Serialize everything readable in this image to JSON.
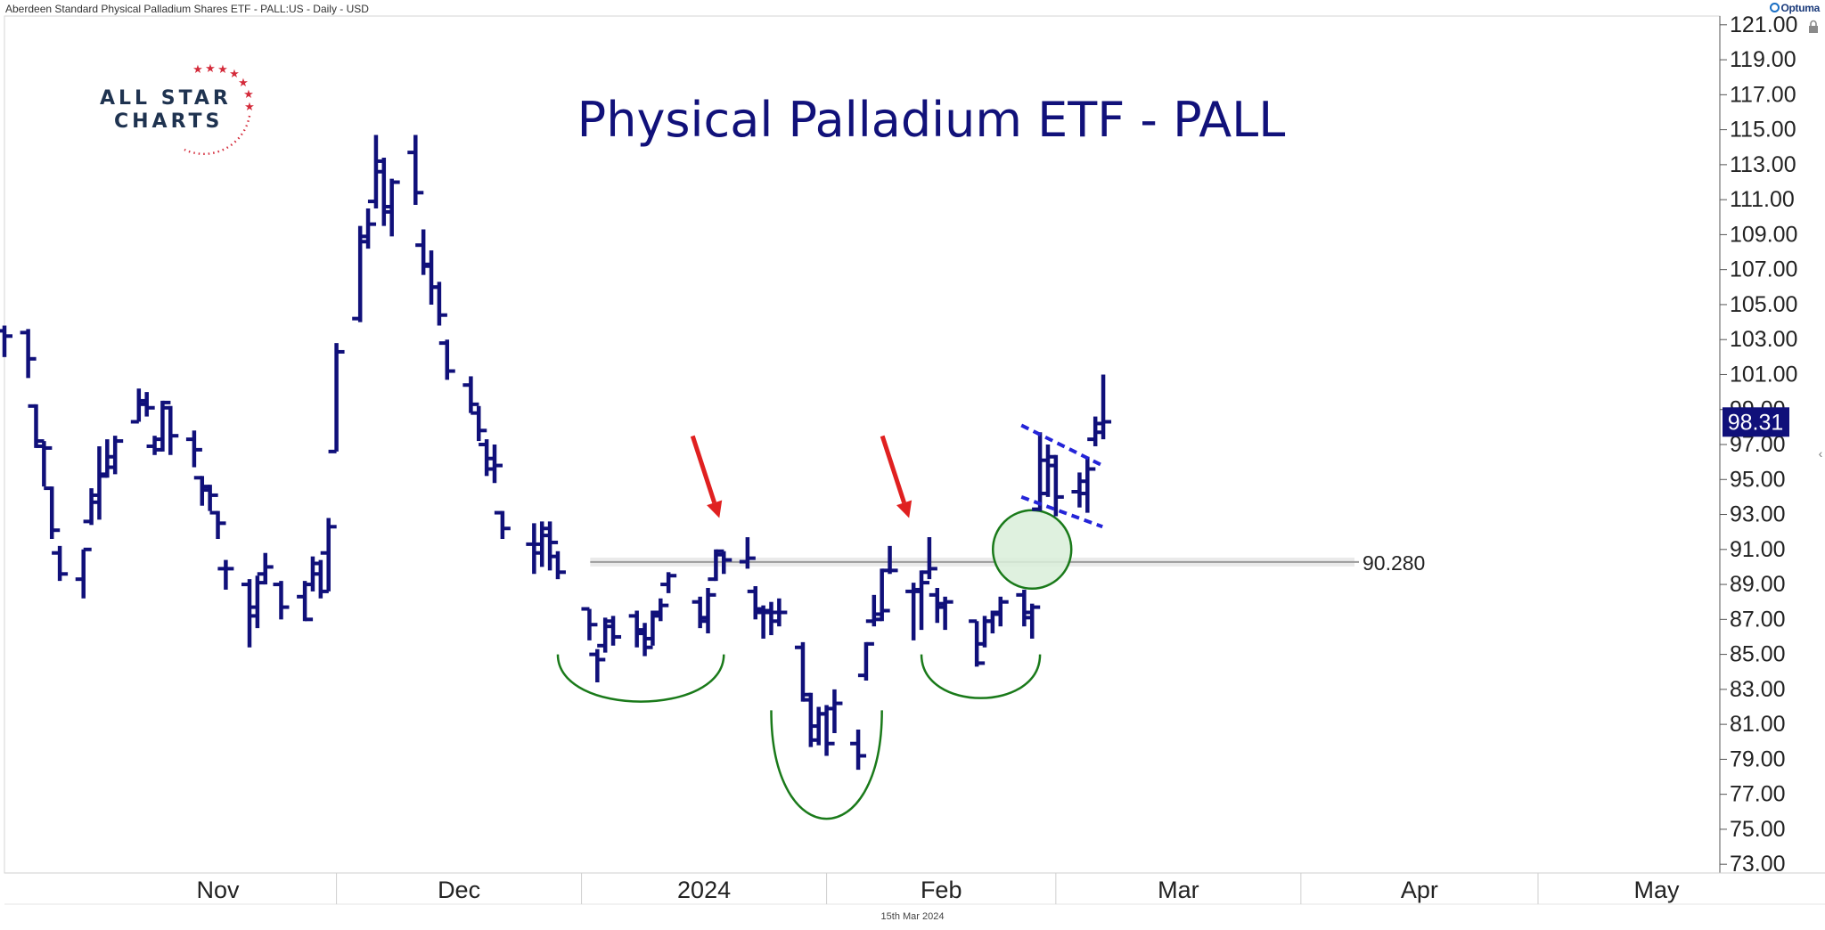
{
  "header": {
    "instrument": "Aberdeen Standard Physical Palladium Shares ETF - PALL:US - Daily - USD",
    "brand": "Optuma"
  },
  "footer": {
    "date": "15th Mar 2024"
  },
  "logo": {
    "line1": "ALL STAR",
    "line2": "CHARTS"
  },
  "colors": {
    "bars": "#10107a",
    "title": "#11117a",
    "arrows": "#e02020",
    "arcs": "#1a7a1a",
    "flag": "#2424d8",
    "price_tag": "#10107a",
    "circle_fill": "#d9efd9"
  },
  "chart_data": {
    "type": "ohlc",
    "title": "Physical Palladium ETF - PALL",
    "y_ticks": [
      73,
      75,
      77,
      79,
      81,
      83,
      85,
      87,
      89,
      91,
      93,
      95,
      97,
      99,
      101,
      103,
      105,
      107,
      109,
      111,
      113,
      115,
      117,
      119,
      121
    ],
    "y_tick_labels": [
      "73.00",
      "75.00",
      "77.00",
      "79.00",
      "81.00",
      "83.00",
      "85.00",
      "87.00",
      "89.00",
      "91.00",
      "93.00",
      "95.00",
      "97.00",
      "99.00",
      "101.00",
      "103.00",
      "105.00",
      "107.00",
      "109.00",
      "111.00",
      "113.00",
      "115.00",
      "117.00",
      "119.00",
      "121.00"
    ],
    "ylim": [
      72.5,
      121.5
    ],
    "x_labels": [
      {
        "label": "Nov",
        "date": "2023-11-01"
      },
      {
        "label": "Dec",
        "date": "2023-12-01"
      },
      {
        "label": "2024",
        "date": "2024-01-01"
      },
      {
        "label": "Feb",
        "date": "2024-02-01"
      },
      {
        "label": "Mar",
        "date": "2024-03-01"
      },
      {
        "label": "Apr",
        "date": "2024-04-01"
      },
      {
        "label": "May",
        "date": "2024-05-01"
      }
    ],
    "x_start": "2023-10-20",
    "x_end": "2024-05-24",
    "last_price": "98.31",
    "support_level": 90.28,
    "support_label": "90.280",
    "support_start": "2024-01-03",
    "bars": [
      {
        "d": "2023-10-20",
        "o": 103.5,
        "h": 103.8,
        "l": 102.0,
        "c": 103.2
      },
      {
        "d": "2023-10-23",
        "o": 103.4,
        "h": 103.6,
        "l": 100.8,
        "c": 101.9
      },
      {
        "d": "2023-10-24",
        "o": 99.2,
        "h": 99.3,
        "l": 96.8,
        "c": 97.2
      },
      {
        "d": "2023-10-25",
        "o": 96.9,
        "h": 97.2,
        "l": 94.6,
        "c": 96.8
      },
      {
        "d": "2023-10-26",
        "o": 94.5,
        "h": 94.6,
        "l": 91.6,
        "c": 92.1
      },
      {
        "d": "2023-10-27",
        "o": 90.8,
        "h": 91.2,
        "l": 89.2,
        "c": 89.6
      },
      {
        "d": "2023-10-30",
        "o": 89.3,
        "h": 91.0,
        "l": 88.2,
        "c": 91.0
      },
      {
        "d": "2023-10-31",
        "o": 92.6,
        "h": 94.5,
        "l": 92.4,
        "c": 94.1
      },
      {
        "d": "2023-11-01",
        "o": 93.7,
        "h": 96.9,
        "l": 92.7,
        "c": 95.2
      },
      {
        "d": "2023-11-02",
        "o": 95.3,
        "h": 97.3,
        "l": 95.1,
        "c": 96.3
      },
      {
        "d": "2023-11-03",
        "o": 95.7,
        "h": 97.5,
        "l": 95.3,
        "c": 97.2
      },
      {
        "d": "2023-11-06",
        "o": 98.3,
        "h": 100.2,
        "l": 98.3,
        "c": 99.5
      },
      {
        "d": "2023-11-07",
        "o": 99.3,
        "h": 100.0,
        "l": 98.6,
        "c": 99.1
      },
      {
        "d": "2023-11-08",
        "o": 96.9,
        "h": 97.5,
        "l": 96.4,
        "c": 97.3
      },
      {
        "d": "2023-11-09",
        "o": 96.7,
        "h": 99.5,
        "l": 96.6,
        "c": 99.4
      },
      {
        "d": "2023-11-10",
        "o": 99.1,
        "h": 99.2,
        "l": 96.4,
        "c": 97.5
      },
      {
        "d": "2023-11-13",
        "o": 97.3,
        "h": 97.8,
        "l": 95.7,
        "c": 96.7
      },
      {
        "d": "2023-11-14",
        "o": 95.1,
        "h": 95.2,
        "l": 93.5,
        "c": 94.6
      },
      {
        "d": "2023-11-15",
        "o": 94.4,
        "h": 94.7,
        "l": 93.2,
        "c": 94.1
      },
      {
        "d": "2023-11-16",
        "o": 93.1,
        "h": 93.2,
        "l": 91.6,
        "c": 92.5
      },
      {
        "d": "2023-11-17",
        "o": 89.9,
        "h": 90.4,
        "l": 88.7,
        "c": 89.9
      },
      {
        "d": "2023-11-20",
        "o": 89.0,
        "h": 89.3,
        "l": 85.4,
        "c": 87.7
      },
      {
        "d": "2023-11-21",
        "o": 87.2,
        "h": 89.5,
        "l": 86.5,
        "c": 89.1
      },
      {
        "d": "2023-11-22",
        "o": 89.6,
        "h": 90.8,
        "l": 89.0,
        "c": 90.0
      },
      {
        "d": "2023-11-24",
        "o": 89.0,
        "h": 89.2,
        "l": 87.0,
        "c": 87.7
      },
      {
        "d": "2023-11-27",
        "o": 88.3,
        "h": 89.2,
        "l": 86.9,
        "c": 87.0
      },
      {
        "d": "2023-11-28",
        "o": 89.0,
        "h": 90.6,
        "l": 88.6,
        "c": 89.6
      },
      {
        "d": "2023-11-29",
        "o": 90.2,
        "h": 90.4,
        "l": 88.2,
        "c": 88.6
      },
      {
        "d": "2023-11-30",
        "o": 90.8,
        "h": 92.8,
        "l": 88.6,
        "c": 92.3
      },
      {
        "d": "2023-12-01",
        "o": 96.6,
        "h": 102.8,
        "l": 96.6,
        "c": 102.3
      },
      {
        "d": "2023-12-04",
        "o": 104.2,
        "h": 109.5,
        "l": 104.0,
        "c": 108.6
      },
      {
        "d": "2023-12-05",
        "o": 108.9,
        "h": 110.5,
        "l": 108.2,
        "c": 109.6
      },
      {
        "d": "2023-12-06",
        "o": 110.9,
        "h": 114.7,
        "l": 110.5,
        "c": 113.2
      },
      {
        "d": "2023-12-07",
        "o": 112.6,
        "h": 113.4,
        "l": 109.5,
        "c": 110.3
      },
      {
        "d": "2023-12-08",
        "o": 110.6,
        "h": 112.2,
        "l": 108.9,
        "c": 112.0
      },
      {
        "d": "2023-12-11",
        "o": 113.7,
        "h": 114.7,
        "l": 110.7,
        "c": 111.4
      },
      {
        "d": "2023-12-12",
        "o": 108.4,
        "h": 109.3,
        "l": 106.7,
        "c": 107.2
      },
      {
        "d": "2023-12-13",
        "o": 107.3,
        "h": 108.1,
        "l": 105.0,
        "c": 106.0
      },
      {
        "d": "2023-12-14",
        "o": 106.0,
        "h": 106.3,
        "l": 103.8,
        "c": 104.4
      },
      {
        "d": "2023-12-15",
        "o": 102.8,
        "h": 103.0,
        "l": 100.7,
        "c": 101.2
      },
      {
        "d": "2023-12-18",
        "o": 100.4,
        "h": 100.9,
        "l": 98.8,
        "c": 99.3
      },
      {
        "d": "2023-12-19",
        "o": 98.8,
        "h": 99.2,
        "l": 97.2,
        "c": 97.8
      },
      {
        "d": "2023-12-20",
        "o": 97.0,
        "h": 97.3,
        "l": 95.2,
        "c": 95.6
      },
      {
        "d": "2023-12-21",
        "o": 96.2,
        "h": 97.0,
        "l": 94.8,
        "c": 95.8
      },
      {
        "d": "2023-12-22",
        "o": 93.1,
        "h": 93.2,
        "l": 91.6,
        "c": 92.2
      },
      {
        "d": "2023-12-26",
        "o": 91.3,
        "h": 92.5,
        "l": 89.6,
        "c": 90.8
      },
      {
        "d": "2023-12-27",
        "o": 91.3,
        "h": 92.6,
        "l": 90.0,
        "c": 92.2
      },
      {
        "d": "2023-12-28",
        "o": 91.8,
        "h": 92.6,
        "l": 89.8,
        "c": 91.4
      },
      {
        "d": "2023-12-29",
        "o": 90.6,
        "h": 90.9,
        "l": 89.3,
        "c": 89.7
      },
      {
        "d": "2024-01-02",
        "o": 87.6,
        "h": 87.6,
        "l": 85.8,
        "c": 86.7
      },
      {
        "d": "2024-01-03",
        "o": 85.0,
        "h": 85.3,
        "l": 83.4,
        "c": 84.7
      },
      {
        "d": "2024-01-04",
        "o": 85.5,
        "h": 87.1,
        "l": 85.1,
        "c": 86.9
      },
      {
        "d": "2024-01-05",
        "o": 86.6,
        "h": 87.2,
        "l": 85.5,
        "c": 86.0
      },
      {
        "d": "2024-01-08",
        "o": 87.2,
        "h": 87.5,
        "l": 85.4,
        "c": 86.2
      },
      {
        "d": "2024-01-09",
        "o": 86.4,
        "h": 86.8,
        "l": 84.9,
        "c": 85.4
      },
      {
        "d": "2024-01-10",
        "o": 85.9,
        "h": 87.5,
        "l": 85.5,
        "c": 87.4
      },
      {
        "d": "2024-01-11",
        "o": 87.2,
        "h": 88.2,
        "l": 86.9,
        "c": 87.8
      },
      {
        "d": "2024-01-12",
        "o": 89.0,
        "h": 89.7,
        "l": 88.5,
        "c": 89.5
      },
      {
        "d": "2024-01-16",
        "o": 88.0,
        "h": 88.3,
        "l": 86.5,
        "c": 86.9
      },
      {
        "d": "2024-01-17",
        "o": 87.1,
        "h": 88.8,
        "l": 86.2,
        "c": 88.4
      },
      {
        "d": "2024-01-18",
        "o": 89.3,
        "h": 91.0,
        "l": 89.2,
        "c": 90.9
      },
      {
        "d": "2024-01-19",
        "o": 90.7,
        "h": 90.9,
        "l": 89.6,
        "c": 90.4
      },
      {
        "d": "2024-01-22",
        "o": 90.3,
        "h": 91.7,
        "l": 89.9,
        "c": 90.5
      },
      {
        "d": "2024-01-23",
        "o": 88.6,
        "h": 88.9,
        "l": 87.0,
        "c": 87.6
      },
      {
        "d": "2024-01-24",
        "o": 87.4,
        "h": 87.8,
        "l": 85.9,
        "c": 87.5
      },
      {
        "d": "2024-01-25",
        "o": 87.4,
        "h": 88.0,
        "l": 86.1,
        "c": 86.9
      },
      {
        "d": "2024-01-26",
        "o": 87.4,
        "h": 88.2,
        "l": 86.6,
        "c": 87.4
      },
      {
        "d": "2024-01-29",
        "o": 85.4,
        "h": 85.7,
        "l": 82.3,
        "c": 82.7
      },
      {
        "d": "2024-01-30",
        "o": 82.4,
        "h": 82.8,
        "l": 79.7,
        "c": 80.1
      },
      {
        "d": "2024-01-31",
        "o": 80.9,
        "h": 82.0,
        "l": 79.8,
        "c": 81.6
      },
      {
        "d": "2024-02-01",
        "o": 81.6,
        "h": 82.1,
        "l": 79.2,
        "c": 79.9
      },
      {
        "d": "2024-02-02",
        "o": 81.9,
        "h": 83.0,
        "l": 80.5,
        "c": 82.2
      },
      {
        "d": "2024-02-05",
        "o": 79.9,
        "h": 80.7,
        "l": 78.4,
        "c": 79.2
      },
      {
        "d": "2024-02-06",
        "o": 83.8,
        "h": 85.7,
        "l": 83.5,
        "c": 85.6
      },
      {
        "d": "2024-02-07",
        "o": 86.9,
        "h": 88.4,
        "l": 86.6,
        "c": 87.3
      },
      {
        "d": "2024-02-08",
        "o": 87.0,
        "h": 89.9,
        "l": 86.9,
        "c": 87.5
      },
      {
        "d": "2024-02-09",
        "o": 89.8,
        "h": 91.2,
        "l": 89.6,
        "c": 89.8
      },
      {
        "d": "2024-02-12",
        "o": 88.6,
        "h": 89.1,
        "l": 85.8,
        "c": 88.7
      },
      {
        "d": "2024-02-13",
        "o": 88.6,
        "h": 89.8,
        "l": 86.4,
        "c": 89.1
      },
      {
        "d": "2024-02-14",
        "o": 89.7,
        "h": 91.7,
        "l": 89.3,
        "c": 89.9
      },
      {
        "d": "2024-02-15",
        "o": 88.4,
        "h": 88.8,
        "l": 86.8,
        "c": 87.9
      },
      {
        "d": "2024-02-16",
        "o": 87.7,
        "h": 88.3,
        "l": 86.4,
        "c": 88.0
      },
      {
        "d": "2024-02-20",
        "o": 86.9,
        "h": 86.9,
        "l": 84.3,
        "c": 84.5
      },
      {
        "d": "2024-02-21",
        "o": 85.6,
        "h": 87.2,
        "l": 85.4,
        "c": 86.9
      },
      {
        "d": "2024-02-22",
        "o": 86.9,
        "h": 87.5,
        "l": 86.2,
        "c": 87.3
      },
      {
        "d": "2024-02-23",
        "o": 87.4,
        "h": 88.3,
        "l": 86.6,
        "c": 88.0
      },
      {
        "d": "2024-02-26",
        "o": 88.4,
        "h": 88.7,
        "l": 86.6,
        "c": 87.1
      },
      {
        "d": "2024-02-27",
        "o": 87.4,
        "h": 87.9,
        "l": 85.9,
        "c": 87.7
      },
      {
        "d": "2024-02-28",
        "o": 93.3,
        "h": 97.7,
        "l": 93.2,
        "c": 96.1
      },
      {
        "d": "2024-02-29",
        "o": 94.2,
        "h": 97.0,
        "l": 94.0,
        "c": 96.3
      },
      {
        "d": "2024-03-01",
        "o": 95.8,
        "h": 96.4,
        "l": 92.9,
        "c": 94.0
      },
      {
        "d": "2024-03-04",
        "o": 94.3,
        "h": 95.4,
        "l": 93.4,
        "c": 94.9
      },
      {
        "d": "2024-03-05",
        "o": 94.2,
        "h": 96.3,
        "l": 93.1,
        "c": 95.6
      },
      {
        "d": "2024-03-06",
        "o": 97.3,
        "h": 98.6,
        "l": 96.9,
        "c": 98.2
      },
      {
        "d": "2024-03-07",
        "o": 97.7,
        "h": 101.0,
        "l": 97.3,
        "c": 98.3
      }
    ],
    "annotations": {
      "arrows": [
        {
          "date": "2024-01-19",
          "price": 92.8
        },
        {
          "date": "2024-02-12",
          "price": 92.8
        }
      ],
      "arcs": [
        {
          "from": "2023-12-29",
          "to": "2024-01-19",
          "top": 85.0,
          "bottom": 82.3
        },
        {
          "from": "2024-01-25",
          "to": "2024-02-08",
          "top": 81.8,
          "bottom": 75.6
        },
        {
          "from": "2024-02-13",
          "to": "2024-02-28",
          "top": 85.0,
          "bottom": 82.5
        }
      ],
      "circle": {
        "date": "2024-02-27",
        "price": 91.0
      },
      "flag_lines": [
        {
          "d1": "2024-02-27",
          "p1": 98.1,
          "d2": "2024-03-06",
          "p2": 95.8
        },
        {
          "d1": "2024-02-27",
          "p1": 94.0,
          "d2": "2024-03-06",
          "p2": 92.3
        }
      ]
    }
  }
}
